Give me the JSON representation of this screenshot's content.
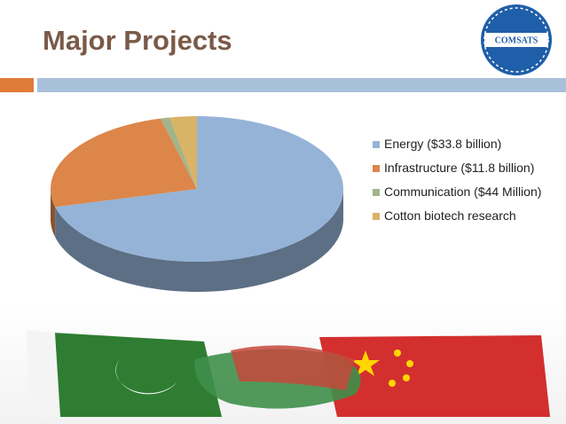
{
  "header": {
    "title": "Major Projects",
    "logo": "COMSATS"
  },
  "chart_data": {
    "type": "pie",
    "categories": [
      "Energy ($33.8 billion)",
      "Infrastructure ($11.8 billion)",
      "Communication ($44 Million)",
      "Cotton biotech research"
    ],
    "values": [
      71,
      25,
      1,
      3
    ],
    "colors": [
      "#95b3d7",
      "#dc864a",
      "#a3b38a",
      "#d9b366"
    ]
  }
}
